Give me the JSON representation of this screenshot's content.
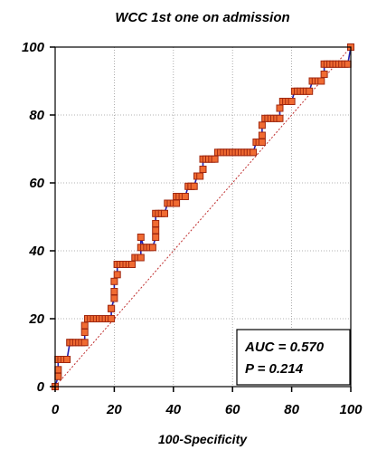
{
  "chart_data": {
    "type": "line",
    "title": "WCC 1st one on admission",
    "xlabel": "100-Specificity",
    "ylabel": "",
    "xlim": [
      0,
      100
    ],
    "ylim": [
      0,
      100
    ],
    "x_ticks": [
      "0",
      "20",
      "40",
      "60",
      "80",
      "100"
    ],
    "y_ticks": [
      "0",
      "20",
      "40",
      "60",
      "80",
      "100"
    ],
    "grid": true,
    "stats": {
      "auc": "AUC = 0.570",
      "p": "P = 0.214"
    },
    "colors": {
      "curve": "#1f1fb0",
      "marker_fill": "#f06b32",
      "marker_edge": "#a02810",
      "diagonal": "#c03030",
      "grid": "#9a9a9a"
    },
    "series": [
      {
        "name": "",
        "x": [
          0,
          0,
          1,
          1,
          1,
          1,
          2,
          2,
          3,
          4,
          5,
          5,
          6,
          7,
          8,
          9,
          10,
          10,
          10,
          11,
          12,
          13,
          14,
          15,
          16,
          17,
          18,
          19,
          19,
          19,
          20,
          20,
          20,
          21,
          21,
          21,
          22,
          23,
          24,
          25,
          26,
          27,
          28,
          29,
          29,
          29,
          30,
          31,
          32,
          33,
          34,
          34,
          34,
          34,
          35,
          36,
          37,
          38,
          39,
          40,
          41,
          41,
          42,
          43,
          44,
          45,
          46,
          46,
          47,
          48,
          49,
          50,
          50,
          51,
          52,
          53,
          54,
          55,
          56,
          57,
          58,
          59,
          60,
          61,
          62,
          63,
          64,
          65,
          66,
          67,
          68,
          69,
          70,
          70,
          70,
          71,
          72,
          73,
          74,
          75,
          76,
          76,
          77,
          78,
          79,
          80,
          81,
          82,
          83,
          84,
          85,
          86,
          87,
          88,
          89,
          90,
          91,
          91,
          92,
          93,
          94,
          95,
          96,
          97,
          98,
          99,
          100
        ],
        "y": [
          0,
          0,
          3,
          5,
          8,
          8,
          8,
          8,
          8,
          8,
          13,
          13,
          13,
          13,
          13,
          13,
          13,
          16,
          18,
          20,
          20,
          20,
          20,
          20,
          20,
          20,
          20,
          20,
          23,
          23,
          26,
          28,
          31,
          33,
          36,
          36,
          36,
          36,
          36,
          36,
          36,
          38,
          38,
          38,
          41,
          44,
          41,
          41,
          41,
          41,
          44,
          46,
          48,
          51,
          51,
          51,
          51,
          54,
          54,
          54,
          54,
          56,
          56,
          56,
          56,
          59,
          59,
          59,
          59,
          62,
          62,
          64,
          67,
          67,
          67,
          67,
          67,
          69,
          69,
          69,
          69,
          69,
          69,
          69,
          69,
          69,
          69,
          69,
          69,
          69,
          72,
          72,
          72,
          74,
          77,
          79,
          79,
          79,
          79,
          79,
          79,
          82,
          84,
          84,
          84,
          84,
          87,
          87,
          87,
          87,
          87,
          87,
          90,
          90,
          90,
          90,
          92,
          95,
          95,
          95,
          95,
          95,
          95,
          95,
          95,
          95,
          100
        ]
      }
    ]
  }
}
